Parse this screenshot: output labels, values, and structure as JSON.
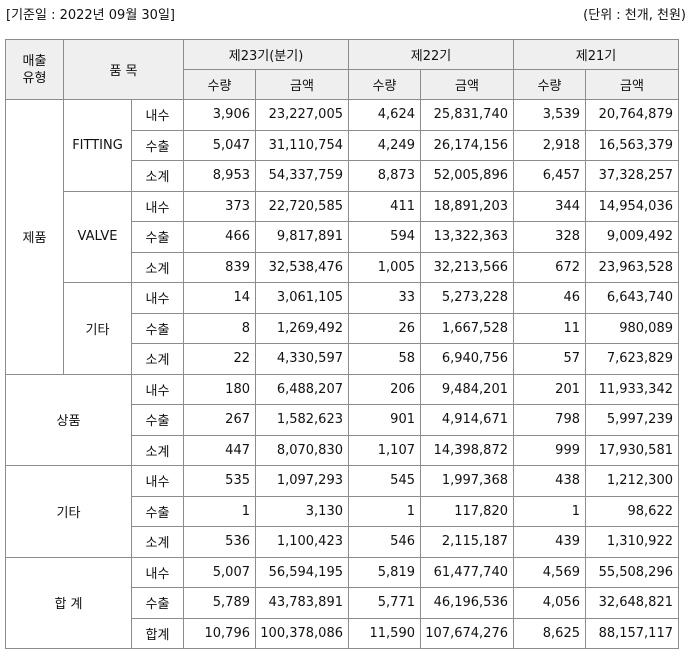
{
  "top": {
    "date": "[기준일 : 2022년 09월 30일]",
    "unit": "(단위 : 천개, 천원)"
  },
  "header": {
    "type": "매출\n유형",
    "item": "품 목",
    "periods": [
      "제23기(분기)",
      "제22기",
      "제21기"
    ],
    "qty": "수량",
    "amt": "금액"
  },
  "sections": [
    {
      "type": "제품",
      "groups": [
        {
          "item": "FITTING",
          "rows": [
            {
              "label": "내수",
              "values": [
                "3,906",
                "23,227,005",
                "4,624",
                "25,831,740",
                "3,539",
                "20,764,879"
              ]
            },
            {
              "label": "수출",
              "values": [
                "5,047",
                "31,110,754",
                "4,249",
                "26,174,156",
                "2,918",
                "16,563,379"
              ]
            },
            {
              "label": "소계",
              "values": [
                "8,953",
                "54,337,759",
                "8,873",
                "52,005,896",
                "6,457",
                "37,328,257"
              ]
            }
          ]
        },
        {
          "item": "VALVE",
          "rows": [
            {
              "label": "내수",
              "values": [
                "373",
                "22,720,585",
                "411",
                "18,891,203",
                "344",
                "14,954,036"
              ]
            },
            {
              "label": "수출",
              "values": [
                "466",
                "9,817,891",
                "594",
                "13,322,363",
                "328",
                "9,009,492"
              ]
            },
            {
              "label": "소계",
              "values": [
                "839",
                "32,538,476",
                "1,005",
                "32,213,566",
                "672",
                "23,963,528"
              ]
            }
          ]
        },
        {
          "item": "기타",
          "rows": [
            {
              "label": "내수",
              "values": [
                "14",
                "3,061,105",
                "33",
                "5,273,228",
                "46",
                "6,643,740"
              ]
            },
            {
              "label": "수출",
              "values": [
                "8",
                "1,269,492",
                "26",
                "1,667,528",
                "11",
                "980,089"
              ]
            },
            {
              "label": "소계",
              "values": [
                "22",
                "4,330,597",
                "58",
                "6,940,756",
                "57",
                "7,623,829"
              ]
            }
          ]
        }
      ]
    },
    {
      "type": "상품",
      "rows": [
        {
          "label": "내수",
          "values": [
            "180",
            "6,488,207",
            "206",
            "9,484,201",
            "201",
            "11,933,342"
          ]
        },
        {
          "label": "수출",
          "values": [
            "267",
            "1,582,623",
            "901",
            "4,914,671",
            "798",
            "5,997,239"
          ]
        },
        {
          "label": "소계",
          "values": [
            "447",
            "8,070,830",
            "1,107",
            "14,398,872",
            "999",
            "17,930,581"
          ]
        }
      ]
    },
    {
      "type": "기타",
      "rows": [
        {
          "label": "내수",
          "values": [
            "535",
            "1,097,293",
            "545",
            "1,997,368",
            "438",
            "1,212,300"
          ]
        },
        {
          "label": "수출",
          "values": [
            "1",
            "3,130",
            "1",
            "117,820",
            "1",
            "98,622"
          ]
        },
        {
          "label": "소계",
          "values": [
            "536",
            "1,100,423",
            "546",
            "2,115,187",
            "439",
            "1,310,922"
          ]
        }
      ]
    },
    {
      "type": "합 계",
      "rows": [
        {
          "label": "내수",
          "values": [
            "5,007",
            "56,594,195",
            "5,819",
            "61,477,740",
            "4,569",
            "55,508,296"
          ]
        },
        {
          "label": "수출",
          "values": [
            "5,789",
            "43,783,891",
            "5,771",
            "46,196,536",
            "4,056",
            "32,648,821"
          ]
        },
        {
          "label": "합계",
          "values": [
            "10,796",
            "100,378,086",
            "11,590",
            "107,674,276",
            "8,625",
            "88,157,117"
          ]
        }
      ]
    }
  ]
}
